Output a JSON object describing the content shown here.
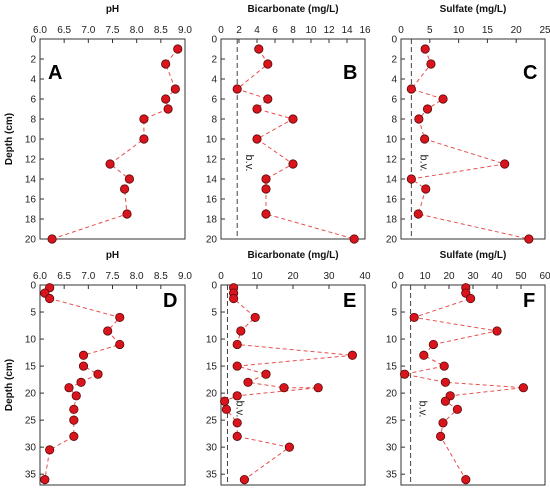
{
  "chart_data": [
    {
      "type": "line",
      "panel": "A",
      "title": "pH",
      "xlabel": "",
      "ylabel": "Depth (cm)",
      "xlim": [
        6.0,
        9.0
      ],
      "ylim": [
        0,
        20
      ],
      "xticks": [
        "6.0",
        "6.5",
        "7.0",
        "7.5",
        "8.0",
        "8.5",
        "9.0"
      ],
      "yticks": [
        "0",
        "2",
        "4",
        "6",
        "8",
        "10",
        "12",
        "14",
        "16",
        "18",
        "20"
      ],
      "x": [
        8.85,
        8.6,
        8.8,
        8.6,
        8.65,
        8.15,
        8.15,
        7.45,
        7.85,
        7.75,
        7.8,
        6.25
      ],
      "y": [
        1,
        2.5,
        5,
        6,
        7,
        8,
        10,
        12.5,
        14,
        15,
        17.5,
        20
      ],
      "series_color": "#d9141c"
    },
    {
      "type": "line",
      "panel": "B",
      "title": "Bicarbonate (mg/L)",
      "xlabel": "",
      "ylabel": "",
      "xlim": [
        0,
        16
      ],
      "ylim": [
        0,
        20
      ],
      "xticks": [
        "0",
        "2",
        "4",
        "6",
        "8",
        "10",
        "12",
        "14",
        "16"
      ],
      "yticks": [
        "0",
        "2",
        "4",
        "6",
        "8",
        "10",
        "12",
        "14",
        "16",
        "18",
        "20"
      ],
      "x": [
        4.2,
        5.2,
        1.8,
        5.2,
        4.0,
        8.0,
        4.0,
        8.0,
        5.0,
        5.0,
        5.0,
        14.8
      ],
      "y": [
        1,
        2.5,
        5,
        6,
        7,
        8,
        10,
        12.5,
        14,
        15,
        17.5,
        20
      ],
      "reference_line": {
        "label": "b.v.",
        "value": 1.8
      },
      "series_color": "#d9141c"
    },
    {
      "type": "line",
      "panel": "C",
      "title": "Sulfate (mg/L)",
      "xlabel": "",
      "ylabel": "",
      "xlim": [
        0,
        25
      ],
      "ylim": [
        0,
        20
      ],
      "xticks": [
        "0",
        "5",
        "10",
        "15",
        "20",
        "25"
      ],
      "yticks": [
        "0",
        "2",
        "4",
        "6",
        "8",
        "10",
        "12",
        "14",
        "16",
        "18",
        "20"
      ],
      "x": [
        4.2,
        5.2,
        1.8,
        7.3,
        4.6,
        3.1,
        4.1,
        18.0,
        1.8,
        4.3,
        3.0,
        22.2
      ],
      "y": [
        1,
        2.5,
        5,
        6,
        7,
        8,
        10,
        12.5,
        14,
        15,
        17.5,
        20
      ],
      "reference_line": {
        "label": "b.v.",
        "value": 1.8
      },
      "series_color": "#d9141c"
    },
    {
      "type": "line",
      "panel": "D",
      "title": "pH",
      "xlabel": "",
      "ylabel": "Depth (cm)",
      "xlim": [
        6.0,
        9.0
      ],
      "ylim": [
        0,
        37
      ],
      "xticks": [
        "6.0",
        "6.5",
        "7.0",
        "7.5",
        "8.0",
        "8.5",
        "9.0"
      ],
      "yticks": [
        "0",
        "5",
        "10",
        "15",
        "20",
        "25",
        "30",
        "35"
      ],
      "x": [
        6.2,
        6.1,
        6.2,
        7.65,
        7.4,
        7.65,
        6.9,
        6.9,
        7.2,
        6.85,
        6.6,
        6.75,
        6.7,
        6.7,
        6.7,
        6.2,
        6.1
      ],
      "y": [
        0.5,
        1.5,
        2.5,
        6,
        8.5,
        11,
        13,
        15,
        16.5,
        18,
        19,
        20.5,
        23,
        25,
        28,
        30.5,
        36
      ],
      "series_color": "#d9141c"
    },
    {
      "type": "line",
      "panel": "E",
      "title": "Bicarbonate (mg/L)",
      "xlabel": "",
      "ylabel": "",
      "xlim": [
        0,
        40
      ],
      "ylim": [
        0,
        37
      ],
      "xticks": [
        "0",
        "10",
        "20",
        "30",
        "40"
      ],
      "yticks": [
        "0",
        "5",
        "10",
        "15",
        "20",
        "25",
        "30",
        "35"
      ],
      "x": [
        3.5,
        3.5,
        3.5,
        9.5,
        5.5,
        4.5,
        36.5,
        4.5,
        12.5,
        7.5,
        17.5,
        27.0,
        4.5,
        1.0,
        1.5,
        4.5,
        4.5,
        19.0,
        6.5
      ],
      "y": [
        0.5,
        1.5,
        2.5,
        6,
        8.5,
        11,
        13,
        15,
        16.5,
        18,
        19,
        19,
        20.5,
        21.5,
        23,
        25.5,
        28,
        30,
        36
      ],
      "reference_line": {
        "label": "b.v.",
        "value": 1.8
      },
      "series_color": "#d9141c"
    },
    {
      "type": "line",
      "panel": "F",
      "title": "Sulfate (mg/L)",
      "xlabel": "",
      "ylabel": "",
      "xlim": [
        0,
        60
      ],
      "ylim": [
        0,
        37
      ],
      "xticks": [
        "0",
        "10",
        "20",
        "30",
        "40",
        "50",
        "60"
      ],
      "yticks": [
        "0",
        "5",
        "10",
        "15",
        "20",
        "25",
        "30",
        "35"
      ],
      "x": [
        27.0,
        27.0,
        29.0,
        5.5,
        40.0,
        13.5,
        9.5,
        18.0,
        1.5,
        18.5,
        51.0,
        20.5,
        18.5,
        23.5,
        17.5,
        16.5,
        27.0
      ],
      "y": [
        0.5,
        1.5,
        2.5,
        6,
        8.5,
        11,
        13,
        15,
        16.5,
        18,
        19,
        20.5,
        21.5,
        23,
        25.5,
        28,
        36
      ],
      "reference_line": {
        "label": "b.v.",
        "value": 4.0
      },
      "series_color": "#d9141c"
    }
  ]
}
